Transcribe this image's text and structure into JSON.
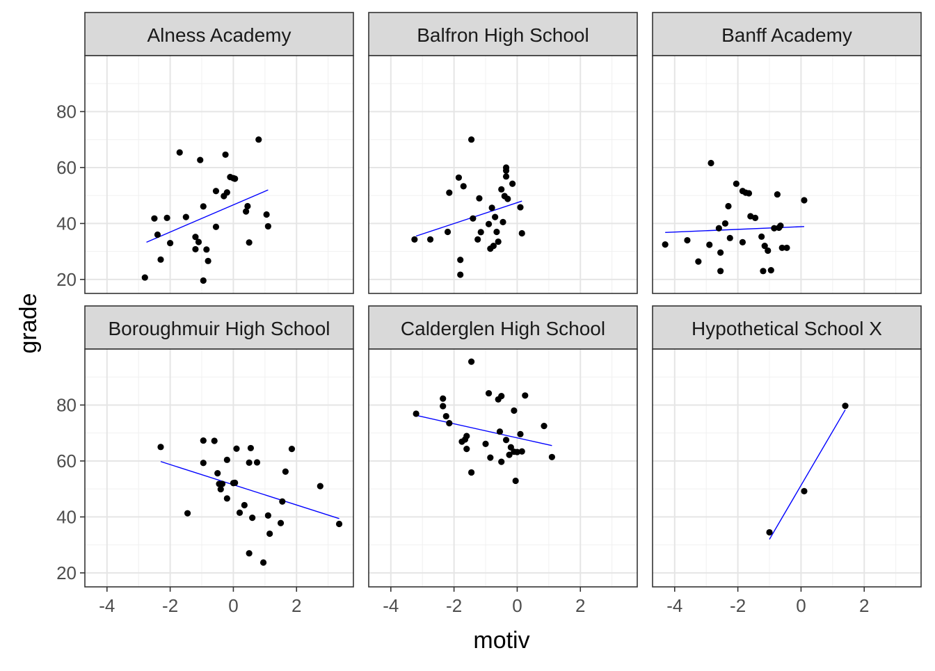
{
  "chart_data": {
    "type": "scatter",
    "facet_layout": "2x3",
    "xlabel": "motiv",
    "ylabel": "grade",
    "xlim": [
      -4.7,
      3.8
    ],
    "ylim": [
      15,
      100
    ],
    "x_ticks": [
      -4,
      -2,
      0,
      2
    ],
    "y_ticks": [
      20,
      40,
      60,
      80
    ],
    "grid": true,
    "point_color": "#000000",
    "fit_line_color": "#0000ff",
    "strip_fill": "#d9d9d9",
    "panels": [
      {
        "title": "Alness Academy",
        "points": [
          [
            -2.8,
            20.7
          ],
          [
            -2.5,
            41.8
          ],
          [
            -2.4,
            36.0
          ],
          [
            -2.3,
            27.1
          ],
          [
            -2.1,
            42.0
          ],
          [
            -2.0,
            33.0
          ],
          [
            -1.7,
            65.4
          ],
          [
            -1.5,
            42.3
          ],
          [
            -1.2,
            35.2
          ],
          [
            -1.2,
            30.8
          ],
          [
            -1.1,
            33.4
          ],
          [
            -1.05,
            62.7
          ],
          [
            -0.95,
            46.1
          ],
          [
            -0.95,
            19.6
          ],
          [
            -0.85,
            30.7
          ],
          [
            -0.8,
            26.6
          ],
          [
            -0.55,
            51.6
          ],
          [
            -0.55,
            38.8
          ],
          [
            -0.3,
            49.8
          ],
          [
            -0.25,
            64.6
          ],
          [
            -0.2,
            51.1
          ],
          [
            -0.1,
            56.6
          ],
          [
            0.0,
            56.2
          ],
          [
            0.05,
            56.0
          ],
          [
            0.4,
            44.3
          ],
          [
            0.45,
            46.2
          ],
          [
            0.5,
            33.2
          ],
          [
            0.8,
            70.0
          ],
          [
            1.05,
            43.2
          ],
          [
            1.1,
            39.0
          ]
        ],
        "fit": [
          [
            -2.75,
            33.3
          ],
          [
            1.1,
            52.0
          ]
        ]
      },
      {
        "title": "Balfron High School",
        "points": [
          [
            -3.25,
            34.3
          ],
          [
            -2.75,
            34.3
          ],
          [
            -2.2,
            37.0
          ],
          [
            -2.15,
            51.0
          ],
          [
            -1.85,
            56.4
          ],
          [
            -1.8,
            27.0
          ],
          [
            -1.8,
            21.7
          ],
          [
            -1.7,
            53.3
          ],
          [
            -1.45,
            70.0
          ],
          [
            -1.4,
            41.8
          ],
          [
            -1.25,
            34.3
          ],
          [
            -1.2,
            49.0
          ],
          [
            -1.15,
            36.9
          ],
          [
            -0.9,
            39.8
          ],
          [
            -0.85,
            31.0
          ],
          [
            -0.8,
            45.6
          ],
          [
            -0.75,
            32.0
          ],
          [
            -0.7,
            42.3
          ],
          [
            -0.65,
            37.0
          ],
          [
            -0.6,
            33.5
          ],
          [
            -0.5,
            52.2
          ],
          [
            -0.45,
            40.5
          ],
          [
            -0.4,
            49.8
          ],
          [
            -0.35,
            60.0
          ],
          [
            -0.35,
            58.9
          ],
          [
            -0.35,
            56.8
          ],
          [
            -0.3,
            48.8
          ],
          [
            -0.15,
            54.2
          ],
          [
            0.1,
            45.8
          ],
          [
            0.15,
            36.5
          ]
        ],
        "fit": [
          [
            -3.2,
            35.5
          ],
          [
            0.15,
            48.0
          ]
        ]
      },
      {
        "title": "Banff Academy",
        "points": [
          [
            -4.3,
            32.5
          ],
          [
            -3.6,
            34.0
          ],
          [
            -3.25,
            26.4
          ],
          [
            -2.9,
            32.4
          ],
          [
            -2.85,
            61.6
          ],
          [
            -2.6,
            38.3
          ],
          [
            -2.55,
            29.6
          ],
          [
            -2.55,
            23.0
          ],
          [
            -2.4,
            40.0
          ],
          [
            -2.3,
            46.2
          ],
          [
            -2.25,
            34.8
          ],
          [
            -2.05,
            54.2
          ],
          [
            -1.85,
            51.6
          ],
          [
            -1.85,
            33.3
          ],
          [
            -1.75,
            51.0
          ],
          [
            -1.65,
            50.8
          ],
          [
            -1.6,
            42.6
          ],
          [
            -1.45,
            42.0
          ],
          [
            -1.25,
            35.3
          ],
          [
            -1.2,
            23.0
          ],
          [
            -1.15,
            32.0
          ],
          [
            -1.05,
            30.3
          ],
          [
            -0.95,
            23.3
          ],
          [
            -0.85,
            38.3
          ],
          [
            -0.75,
            50.4
          ],
          [
            -0.7,
            38.5
          ],
          [
            -0.65,
            39.2
          ],
          [
            -0.6,
            31.3
          ],
          [
            -0.45,
            31.3
          ],
          [
            0.1,
            48.3
          ]
        ],
        "fit": [
          [
            -4.3,
            36.8
          ],
          [
            0.1,
            38.9
          ]
        ]
      },
      {
        "title": "Boroughmuir High School",
        "points": [
          [
            -2.3,
            65.0
          ],
          [
            -1.45,
            41.3
          ],
          [
            -0.95,
            67.3
          ],
          [
            -0.95,
            59.3
          ],
          [
            -0.6,
            67.2
          ],
          [
            -0.5,
            55.6
          ],
          [
            -0.45,
            51.8
          ],
          [
            -0.4,
            49.9
          ],
          [
            -0.35,
            51.8
          ],
          [
            -0.2,
            60.4
          ],
          [
            -0.2,
            46.6
          ],
          [
            0.0,
            52.1
          ],
          [
            0.05,
            52.2
          ],
          [
            0.1,
            64.4
          ],
          [
            0.2,
            41.5
          ],
          [
            0.35,
            44.2
          ],
          [
            0.5,
            59.4
          ],
          [
            0.5,
            27.0
          ],
          [
            0.55,
            64.6
          ],
          [
            0.6,
            39.7
          ],
          [
            0.75,
            59.5
          ],
          [
            0.95,
            23.7
          ],
          [
            1.1,
            40.5
          ],
          [
            1.15,
            34.0
          ],
          [
            1.5,
            37.8
          ],
          [
            1.55,
            45.5
          ],
          [
            1.65,
            56.2
          ],
          [
            1.85,
            64.3
          ],
          [
            2.75,
            51.0
          ],
          [
            3.35,
            37.5
          ]
        ],
        "fit": [
          [
            -2.3,
            59.8
          ],
          [
            3.35,
            39.4
          ]
        ]
      },
      {
        "title": "Calderglen High School",
        "points": [
          [
            -3.2,
            76.9
          ],
          [
            -2.35,
            82.3
          ],
          [
            -2.35,
            79.6
          ],
          [
            -2.25,
            76.0
          ],
          [
            -2.15,
            73.5
          ],
          [
            -1.75,
            66.9
          ],
          [
            -1.65,
            67.7
          ],
          [
            -1.6,
            68.9
          ],
          [
            -1.6,
            64.3
          ],
          [
            -1.45,
            95.5
          ],
          [
            -1.45,
            55.9
          ],
          [
            -1.0,
            66.1
          ],
          [
            -0.9,
            84.2
          ],
          [
            -0.85,
            61.2
          ],
          [
            -0.6,
            82.0
          ],
          [
            -0.55,
            70.5
          ],
          [
            -0.5,
            83.2
          ],
          [
            -0.5,
            59.7
          ],
          [
            -0.35,
            67.5
          ],
          [
            -0.25,
            62.2
          ],
          [
            -0.2,
            64.9
          ],
          [
            -0.1,
            78.0
          ],
          [
            -0.1,
            63.3
          ],
          [
            -0.05,
            52.9
          ],
          [
            0.0,
            63.2
          ],
          [
            0.1,
            69.6
          ],
          [
            0.15,
            63.4
          ],
          [
            0.25,
            83.4
          ],
          [
            0.85,
            72.5
          ],
          [
            1.1,
            61.4
          ]
        ],
        "fit": [
          [
            -3.2,
            76.3
          ],
          [
            1.1,
            65.5
          ]
        ]
      },
      {
        "title": "Hypothetical School X",
        "points": [
          [
            -1.0,
            34.5
          ],
          [
            0.1,
            49.2
          ],
          [
            1.4,
            79.7
          ]
        ],
        "fit": [
          [
            -1.0,
            32.0
          ],
          [
            1.4,
            78.3
          ]
        ]
      }
    ]
  }
}
